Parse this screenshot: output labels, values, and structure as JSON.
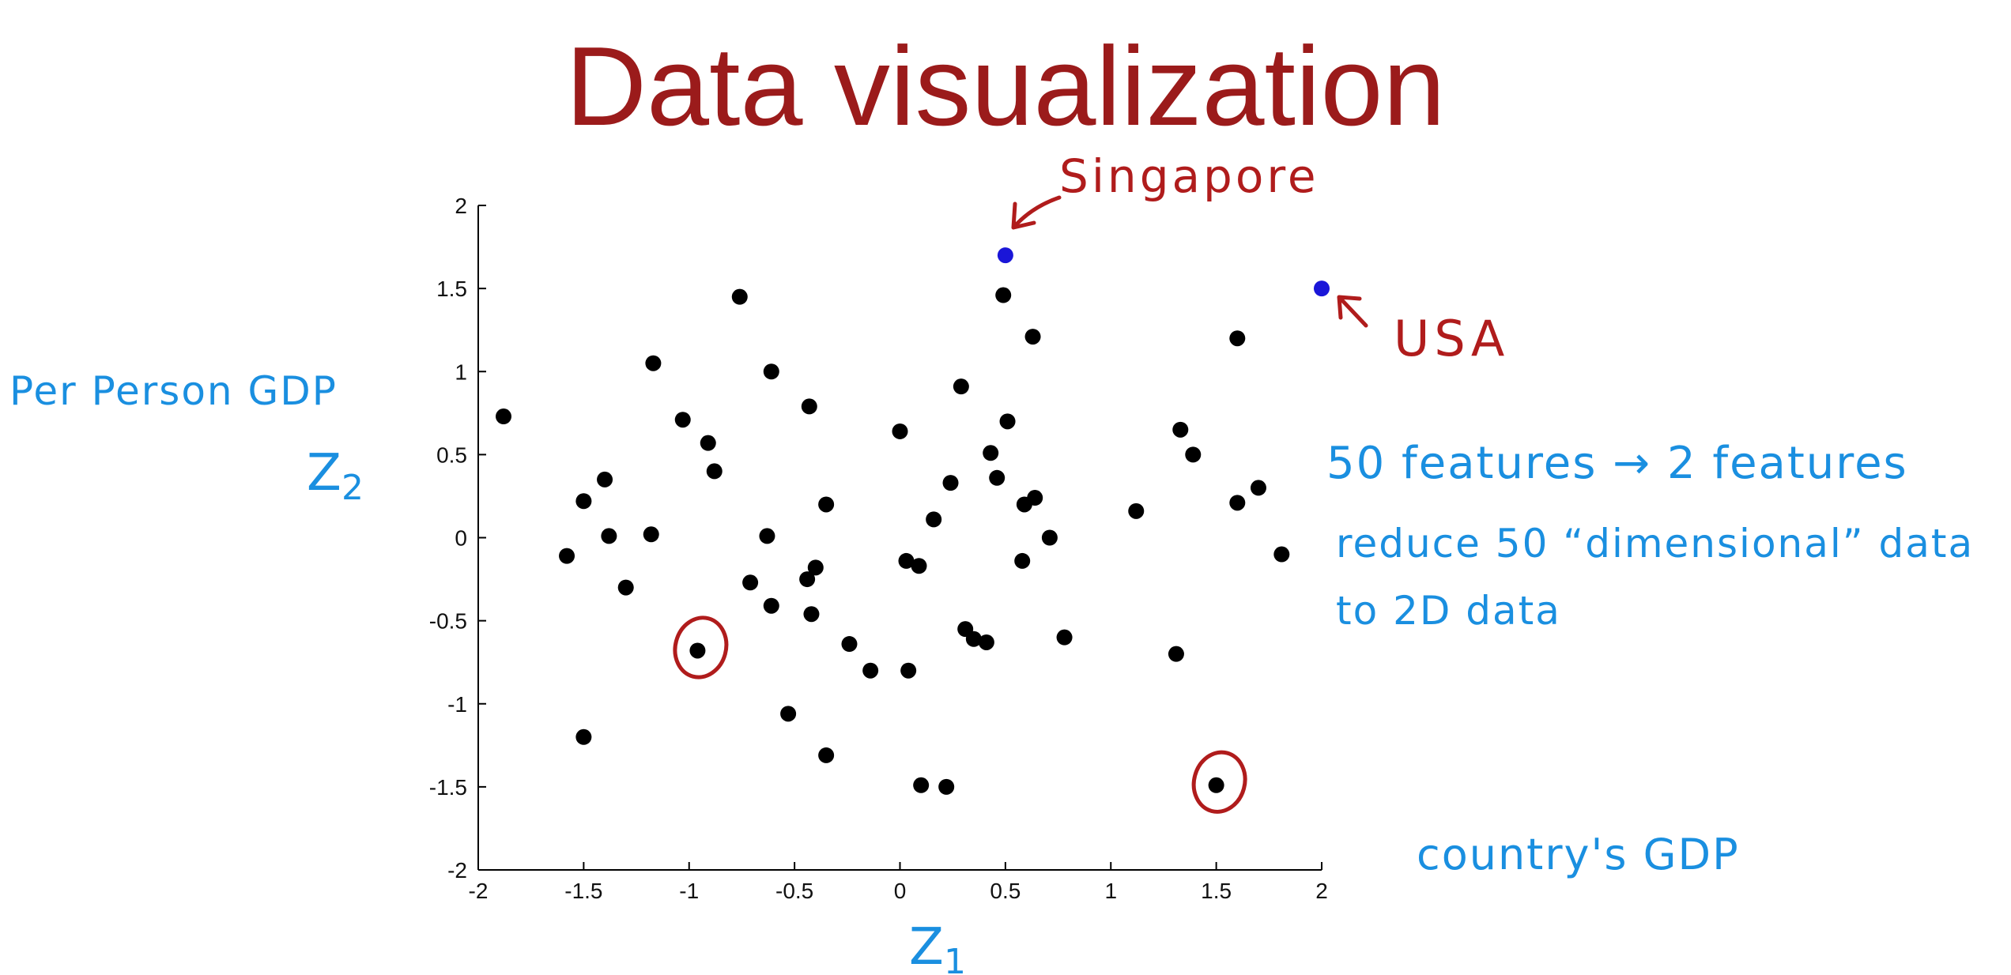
{
  "slide": {
    "title": "Data visualization"
  },
  "colors": {
    "title": "#9b1b1b",
    "points": "#000000",
    "highlight_points": "#1a16d8",
    "annotation_blue": "#1a8fe0",
    "annotation_red": "#b01c1c"
  },
  "annotations": {
    "singapore": "Singapore",
    "usa": "USA",
    "ylabel_top": "Per Person GDP",
    "ylabel_var": "Z",
    "ylabel_sub": "2",
    "xlabel_var": "Z",
    "xlabel_sub": "1",
    "features_line": "50 features → 2 features",
    "reduce_line1": "reduce 50 “dimensional” data",
    "reduce_line2": "to 2D data",
    "country_gdp": "country's GDP"
  },
  "chart_data": {
    "type": "scatter",
    "title": "",
    "xlabel": "",
    "ylabel": "",
    "xlim": [
      -2,
      2
    ],
    "ylim": [
      -2,
      2
    ],
    "xticks": [
      -2,
      -1.5,
      -1,
      -0.5,
      0,
      0.5,
      1,
      1.5,
      2
    ],
    "yticks": [
      -2,
      -1.5,
      -1,
      -0.5,
      0,
      0.5,
      1,
      1.5,
      2
    ],
    "xtick_labels": [
      "-2",
      "-1.5",
      "-1",
      "-0.5",
      "0",
      "0.5",
      "1",
      "1.5",
      "2"
    ],
    "ytick_labels": [
      "-2",
      "-1.5",
      "-1",
      "-0.5",
      "0",
      "0.5",
      "1",
      "1.5",
      "2"
    ],
    "grid": false,
    "points": [
      {
        "x": -1.88,
        "y": 0.73
      },
      {
        "x": -1.58,
        "y": -0.11
      },
      {
        "x": -1.5,
        "y": 0.22
      },
      {
        "x": -1.5,
        "y": -1.2
      },
      {
        "x": -1.4,
        "y": 0.35
      },
      {
        "x": -1.38,
        "y": 0.01
      },
      {
        "x": -1.3,
        "y": -0.3
      },
      {
        "x": -1.18,
        "y": 0.02
      },
      {
        "x": -1.17,
        "y": 1.05
      },
      {
        "x": -1.03,
        "y": 0.71
      },
      {
        "x": -0.96,
        "y": -0.68
      },
      {
        "x": -0.91,
        "y": 0.57
      },
      {
        "x": -0.88,
        "y": 0.4
      },
      {
        "x": -0.76,
        "y": 1.45
      },
      {
        "x": -0.71,
        "y": -0.27
      },
      {
        "x": -0.63,
        "y": 0.01
      },
      {
        "x": -0.61,
        "y": 1.0
      },
      {
        "x": -0.61,
        "y": -0.41
      },
      {
        "x": -0.53,
        "y": -1.06
      },
      {
        "x": -0.44,
        "y": -0.25
      },
      {
        "x": -0.43,
        "y": 0.79
      },
      {
        "x": -0.42,
        "y": -0.46
      },
      {
        "x": -0.4,
        "y": -0.18
      },
      {
        "x": -0.35,
        "y": 0.2
      },
      {
        "x": -0.35,
        "y": -1.31
      },
      {
        "x": -0.24,
        "y": -0.64
      },
      {
        "x": -0.14,
        "y": -0.8
      },
      {
        "x": 0.0,
        "y": 0.64
      },
      {
        "x": 0.03,
        "y": -0.14
      },
      {
        "x": 0.04,
        "y": -0.8
      },
      {
        "x": 0.09,
        "y": -0.17
      },
      {
        "x": 0.1,
        "y": -1.49
      },
      {
        "x": 0.16,
        "y": 0.11
      },
      {
        "x": 0.22,
        "y": -1.5
      },
      {
        "x": 0.24,
        "y": 0.33
      },
      {
        "x": 0.29,
        "y": 0.91
      },
      {
        "x": 0.31,
        "y": -0.55
      },
      {
        "x": 0.35,
        "y": -0.61
      },
      {
        "x": 0.41,
        "y": -0.63
      },
      {
        "x": 0.43,
        "y": 0.51
      },
      {
        "x": 0.46,
        "y": 0.36
      },
      {
        "x": 0.49,
        "y": 1.46
      },
      {
        "x": 0.51,
        "y": 0.7
      },
      {
        "x": 0.58,
        "y": -0.14
      },
      {
        "x": 0.59,
        "y": 0.2
      },
      {
        "x": 0.63,
        "y": 1.21
      },
      {
        "x": 0.64,
        "y": 0.24
      },
      {
        "x": 0.71,
        "y": 0.0
      },
      {
        "x": 0.78,
        "y": -0.6
      },
      {
        "x": 1.12,
        "y": 0.16
      },
      {
        "x": 1.31,
        "y": -0.7
      },
      {
        "x": 1.33,
        "y": 0.65
      },
      {
        "x": 1.39,
        "y": 0.5
      },
      {
        "x": 1.5,
        "y": -1.49
      },
      {
        "x": 1.6,
        "y": 1.2
      },
      {
        "x": 1.6,
        "y": 0.21
      },
      {
        "x": 1.7,
        "y": 0.3
      },
      {
        "x": 1.81,
        "y": -0.1
      }
    ],
    "highlight_points": [
      {
        "label": "Singapore",
        "x": 0.5,
        "y": 1.7
      },
      {
        "label": "USA",
        "x": 2.0,
        "y": 1.5
      }
    ],
    "circled_points": [
      {
        "x": -0.96,
        "y": -0.68
      },
      {
        "x": 1.5,
        "y": -1.49
      }
    ]
  }
}
